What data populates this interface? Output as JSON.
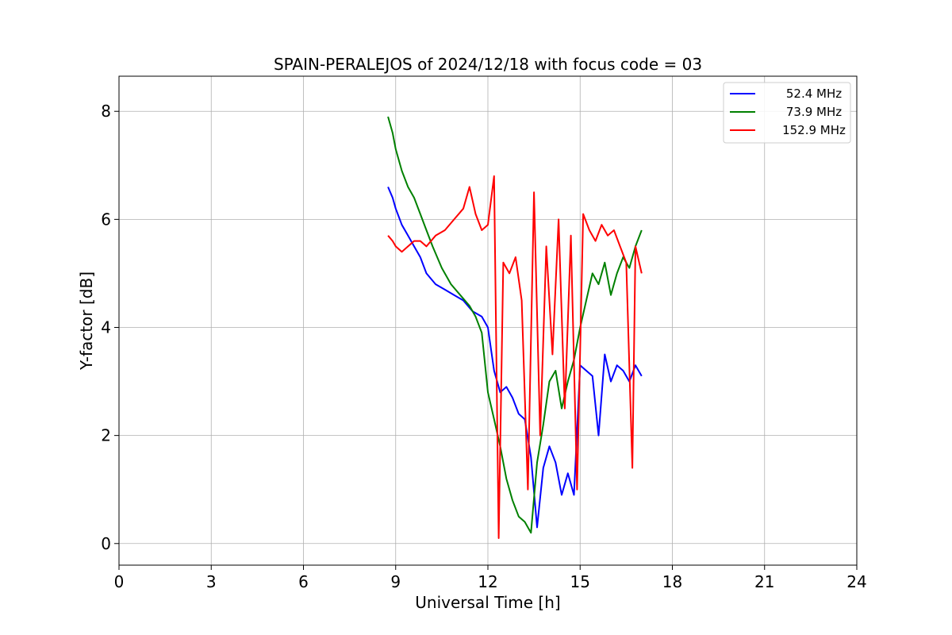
{
  "chart_data": {
    "type": "line",
    "title": "SPAIN-PERALEJOS of 2024/12/18 with focus code = 03",
    "xlabel": "Universal Time [h]",
    "ylabel": "Y-factor [dB]",
    "xlim": [
      0,
      24
    ],
    "ylim": [
      -0.4,
      8.65
    ],
    "xticks": [
      0,
      3,
      6,
      9,
      12,
      15,
      18,
      21,
      24
    ],
    "yticks": [
      0,
      2,
      4,
      6,
      8
    ],
    "grid": true,
    "legend_position": "top-right",
    "series": [
      {
        "name": "52.4 MHz",
        "color": "#0000ff",
        "x": [
          8.75,
          8.9,
          9.0,
          9.2,
          9.4,
          9.6,
          9.8,
          10.0,
          10.3,
          10.6,
          10.9,
          11.2,
          11.5,
          11.8,
          12.0,
          12.2,
          12.4,
          12.6,
          12.8,
          13.0,
          13.2,
          13.4,
          13.6,
          13.8,
          14.0,
          14.2,
          14.4,
          14.6,
          14.8,
          15.0,
          15.2,
          15.4,
          15.6,
          15.8,
          16.0,
          16.2,
          16.4,
          16.6,
          16.8,
          17.0
        ],
        "y": [
          6.6,
          6.4,
          6.2,
          5.9,
          5.7,
          5.5,
          5.3,
          5.0,
          4.8,
          4.7,
          4.6,
          4.5,
          4.3,
          4.2,
          4.0,
          3.2,
          2.8,
          2.9,
          2.7,
          2.4,
          2.3,
          1.6,
          0.3,
          1.4,
          1.8,
          1.5,
          0.9,
          1.3,
          0.9,
          3.3,
          3.2,
          3.1,
          2.0,
          3.5,
          3.0,
          3.3,
          3.2,
          3.0,
          3.3,
          3.1
        ]
      },
      {
        "name": "73.9 MHz",
        "color": "#008000",
        "x": [
          8.75,
          8.9,
          9.0,
          9.2,
          9.4,
          9.6,
          9.8,
          10.0,
          10.2,
          10.5,
          10.8,
          11.1,
          11.4,
          11.6,
          11.8,
          12.0,
          12.2,
          12.4,
          12.6,
          12.8,
          13.0,
          13.2,
          13.4,
          13.6,
          13.8,
          14.0,
          14.2,
          14.4,
          14.6,
          14.8,
          15.0,
          15.2,
          15.4,
          15.6,
          15.8,
          16.0,
          16.2,
          16.4,
          16.6,
          16.8,
          17.0
        ],
        "y": [
          7.9,
          7.6,
          7.3,
          6.9,
          6.6,
          6.4,
          6.1,
          5.8,
          5.5,
          5.1,
          4.8,
          4.6,
          4.4,
          4.2,
          3.9,
          2.8,
          2.3,
          1.8,
          1.2,
          0.8,
          0.5,
          0.4,
          0.2,
          1.5,
          2.2,
          3.0,
          3.2,
          2.5,
          3.0,
          3.4,
          4.0,
          4.5,
          5.0,
          4.8,
          5.2,
          4.6,
          5.0,
          5.3,
          5.1,
          5.5,
          5.8
        ]
      },
      {
        "name": "152.9 MHz",
        "color": "#ff0000",
        "x": [
          8.75,
          8.9,
          9.0,
          9.2,
          9.4,
          9.6,
          9.8,
          10.0,
          10.3,
          10.6,
          10.9,
          11.2,
          11.4,
          11.6,
          11.8,
          12.0,
          12.2,
          12.35,
          12.5,
          12.7,
          12.9,
          13.1,
          13.3,
          13.5,
          13.7,
          13.9,
          14.1,
          14.3,
          14.5,
          14.7,
          14.9,
          15.1,
          15.3,
          15.5,
          15.7,
          15.9,
          16.1,
          16.3,
          16.5,
          16.7,
          16.8,
          17.0
        ],
        "y": [
          5.7,
          5.6,
          5.5,
          5.4,
          5.5,
          5.6,
          5.6,
          5.5,
          5.7,
          5.8,
          6.0,
          6.2,
          6.6,
          6.1,
          5.8,
          5.9,
          6.8,
          0.1,
          5.2,
          5.0,
          5.3,
          4.5,
          1.0,
          6.5,
          2.0,
          5.5,
          3.5,
          6.0,
          2.5,
          5.7,
          1.0,
          6.1,
          5.8,
          5.6,
          5.9,
          5.7,
          5.8,
          5.5,
          5.2,
          1.4,
          5.5,
          5.0
        ]
      }
    ]
  }
}
